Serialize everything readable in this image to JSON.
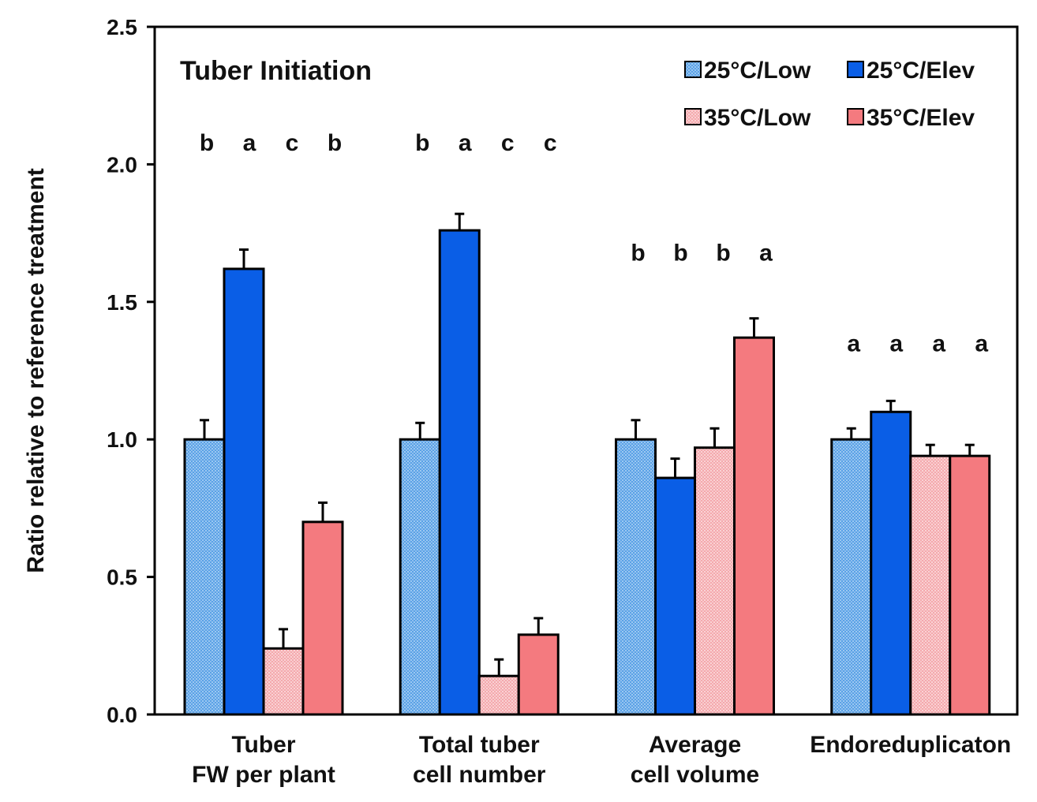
{
  "chart_data": {
    "type": "bar",
    "title": "Tuber Initiation",
    "xlabel": "",
    "ylabel": "Ratio relative to reference treatment",
    "ylim": [
      0,
      2.5
    ],
    "yticks": [
      "0.0",
      "0.5",
      "1.0",
      "1.5",
      "2.0",
      "2.5"
    ],
    "categories": [
      {
        "line1": "Tuber",
        "line2": "FW per plant"
      },
      {
        "line1": "Total tuber",
        "line2": "cell number"
      },
      {
        "line1": "Average",
        "line2": "cell volume"
      },
      {
        "line1": "Endoreduplicaton",
        "line2": ""
      }
    ],
    "series": [
      {
        "name": "25°C/Low",
        "color": "#4d9ae0",
        "pattern": "dots-blue",
        "values": [
          1.0,
          1.0,
          1.0,
          1.0
        ],
        "errors": [
          0.07,
          0.06,
          0.07,
          0.04
        ]
      },
      {
        "name": "25°C/Elev",
        "color": "#0a5ee6",
        "pattern": "",
        "values": [
          1.62,
          1.76,
          0.86,
          1.1
        ],
        "errors": [
          0.07,
          0.06,
          0.07,
          0.04
        ]
      },
      {
        "name": "35°C/Low",
        "color": "#f3a0a5",
        "pattern": "dots-pink",
        "values": [
          0.24,
          0.14,
          0.97,
          0.94
        ],
        "errors": [
          0.07,
          0.06,
          0.07,
          0.04
        ]
      },
      {
        "name": "35°C/Elev",
        "color": "#f47a7f",
        "pattern": "",
        "values": [
          0.7,
          0.29,
          1.37,
          0.94
        ],
        "errors": [
          0.07,
          0.06,
          0.07,
          0.04
        ]
      }
    ],
    "significance_letters": [
      {
        "letters": [
          "b",
          "a",
          "c",
          "b"
        ],
        "y": 2.05
      },
      {
        "letters": [
          "b",
          "a",
          "c",
          "c"
        ],
        "y": 2.05
      },
      {
        "letters": [
          "b",
          "b",
          "b",
          "a"
        ],
        "y": 1.65
      },
      {
        "letters": [
          "a",
          "a",
          "a",
          "a"
        ],
        "y": 1.32
      }
    ],
    "legend_position": "top-right"
  }
}
